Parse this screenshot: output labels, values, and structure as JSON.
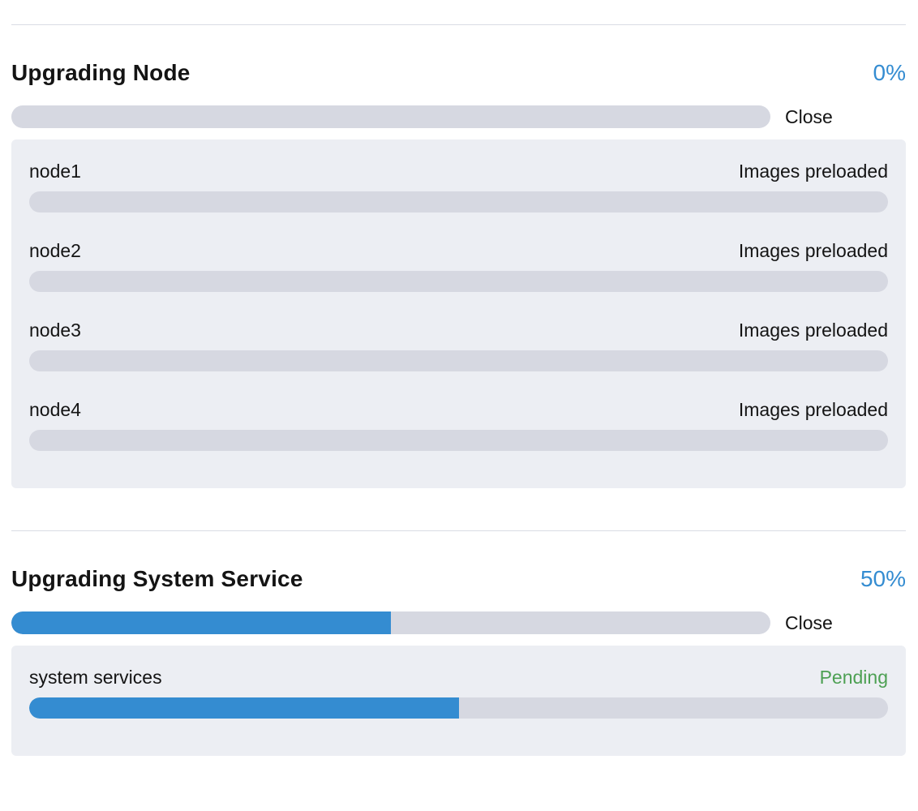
{
  "colors": {
    "accent_blue": "#348cd1",
    "pending_green": "#4da053",
    "track_gray": "#d6d8e1",
    "panel_bg": "#eceef3",
    "divider_gray": "#d9dce4",
    "text_dark": "#141414"
  },
  "sections": [
    {
      "title": "Upgrading Node",
      "percent_label": "0%",
      "percent_value": 0,
      "close_label": "Close",
      "items": [
        {
          "name": "node1",
          "status": "Images preloaded",
          "progress": 0
        },
        {
          "name": "node2",
          "status": "Images preloaded",
          "progress": 0
        },
        {
          "name": "node3",
          "status": "Images preloaded",
          "progress": 0
        },
        {
          "name": "node4",
          "status": "Images preloaded",
          "progress": 0
        }
      ]
    },
    {
      "title": "Upgrading System Service",
      "percent_label": "50%",
      "percent_value": 50,
      "close_label": "Close",
      "items": [
        {
          "name": "system services",
          "status": "Pending",
          "status_color": "#4da053",
          "progress": 50
        }
      ]
    }
  ]
}
